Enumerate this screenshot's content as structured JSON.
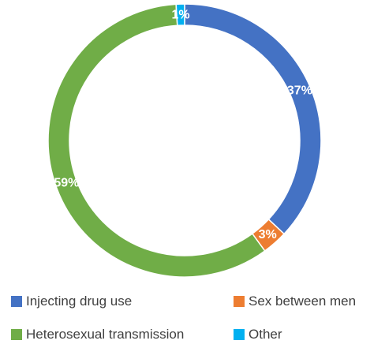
{
  "chart_data": {
    "type": "pie",
    "donut": true,
    "categories": [
      "Injecting drug use",
      "Sex between men",
      "Heterosexual transmission",
      "Other"
    ],
    "values": [
      37,
      3,
      59,
      1
    ],
    "labels": [
      "37%",
      "3%",
      "59%",
      "1%"
    ],
    "colors": [
      "#4472C4",
      "#ED7D31",
      "#70AD47",
      "#00B0F0"
    ],
    "legend_position": "bottom"
  }
}
